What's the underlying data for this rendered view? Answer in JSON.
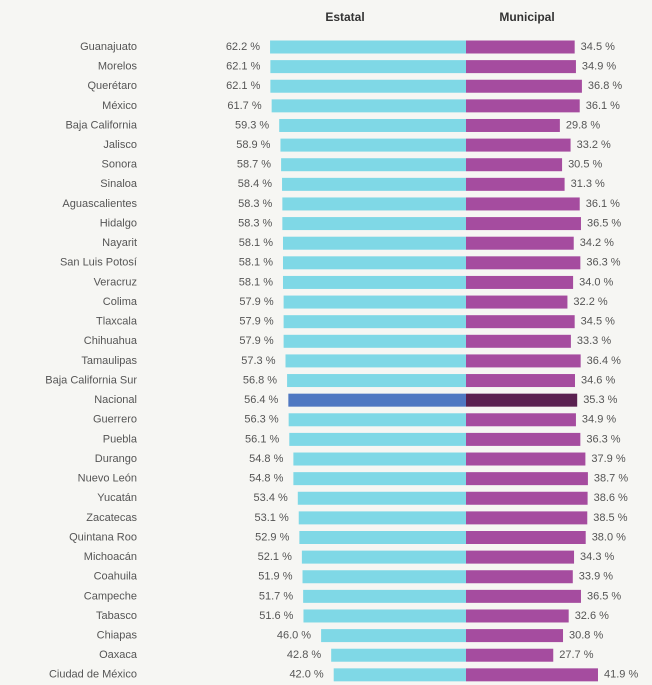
{
  "chart_data": {
    "type": "butterfly",
    "categories": [
      "Guanajuato",
      "Morelos",
      "Querétaro",
      "México",
      "Baja California",
      "Jalisco",
      "Sonora",
      "Sinaloa",
      "Aguascalientes",
      "Hidalgo",
      "Nayarit",
      "San Luis Potosí",
      "Veracruz",
      "Colima",
      "Tlaxcala",
      "Chihuahua",
      "Tamaulipas",
      "Baja California Sur",
      "Nacional",
      "Guerrero",
      "Puebla",
      "Durango",
      "Nuevo León",
      "Yucatán",
      "Zacatecas",
      "Quintana Roo",
      "Michoacán",
      "Coahuila",
      "Campeche",
      "Tabasco",
      "Chiapas",
      "Oaxaca",
      "Ciudad de México"
    ],
    "highlight": "Nacional",
    "series": [
      {
        "name": "Estatal",
        "color": "#7fd8e6",
        "highlight_color": "#4f78c2",
        "values": [
          62.2,
          62.1,
          62.1,
          61.7,
          59.3,
          58.9,
          58.7,
          58.4,
          58.3,
          58.3,
          58.1,
          58.1,
          58.1,
          57.9,
          57.9,
          57.9,
          57.3,
          56.8,
          56.4,
          56.3,
          56.1,
          54.8,
          54.8,
          53.4,
          53.1,
          52.9,
          52.1,
          51.9,
          51.7,
          51.6,
          46.0,
          42.8,
          42.0
        ],
        "value_labels": [
          "62.2 %",
          "62.1 %",
          "62.1 %",
          "61.7 %",
          "59.3 %",
          "58.9 %",
          "58.7 %",
          "58.4 %",
          "58.3 %",
          "58.3 %",
          "58.1 %",
          "58.1 %",
          "58.1 %",
          "57.9 %",
          "57.9 %",
          "57.9 %",
          "57.3 %",
          "56.8 %",
          "56.4 %",
          "56.3 %",
          "56.1 %",
          "54.8 %",
          "54.8 %",
          "53.4 %",
          "53.1 %",
          "52.9 %",
          "52.1 %",
          "51.9 %",
          "51.7 %",
          "51.6 %",
          "46.0 %",
          "42.8 %",
          "42.0 %"
        ]
      },
      {
        "name": "Municipal",
        "color": "#a54c9f",
        "highlight_color": "#5a2050",
        "values": [
          34.5,
          34.9,
          36.8,
          36.1,
          29.8,
          33.2,
          30.5,
          31.3,
          36.1,
          36.5,
          34.2,
          36.3,
          34.0,
          32.2,
          34.5,
          33.3,
          36.4,
          34.6,
          35.3,
          34.9,
          36.3,
          37.9,
          38.7,
          38.6,
          38.5,
          38.0,
          34.3,
          33.9,
          36.5,
          32.6,
          30.8,
          27.7,
          41.9
        ],
        "value_labels": [
          "34.5 %",
          "34.9 %",
          "36.8 %",
          "36.1 %",
          "29.8 %",
          "33.2 %",
          "30.5 %",
          "31.3 %",
          "36.1 %",
          "36.5 %",
          "34.2 %",
          "36.3 %",
          "34.0 %",
          "32.2 %",
          "34.5 %",
          "33.3 %",
          "36.4 %",
          "34.6 %",
          "35.3 %",
          "34.9 %",
          "36.3 %",
          "37.9 %",
          "38.7 %",
          "38.6 %",
          "38.5 %",
          "38.0 %",
          "34.3 %",
          "33.9 %",
          "36.5 %",
          "32.6 %",
          "30.8 %",
          "27.7 %",
          "41.9 %"
        ]
      }
    ]
  }
}
